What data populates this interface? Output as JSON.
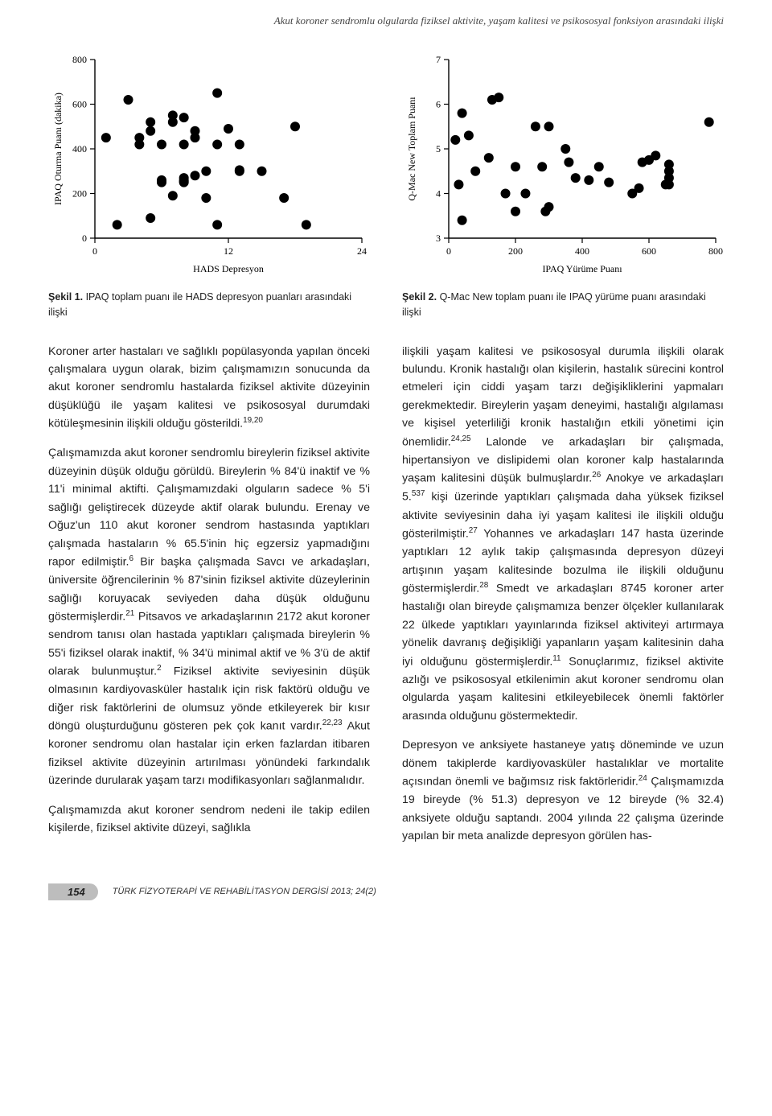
{
  "running_head": "Akut koroner sendromlu olgularda fiziksel aktivite, yaşam kalitesi ve psikososyal fonksiyon arasındaki ilişki",
  "fig1": {
    "type": "scatter",
    "xlabel": "HADS Depresyon",
    "ylabel": "IPAQ Oturma Puanı (dakika)",
    "xlim": [
      0,
      24
    ],
    "xticks": [
      0,
      12,
      24
    ],
    "ylim": [
      0,
      800
    ],
    "yticks": [
      0,
      200,
      400,
      600,
      800
    ],
    "marker": "circle",
    "marker_size": 6,
    "marker_color": "#000000",
    "background_color": "#ffffff",
    "axis_color": "#000000",
    "font_family": "Verdana",
    "tick_fontsize": 12,
    "label_fontsize": 12,
    "points": [
      [
        1,
        450
      ],
      [
        2,
        60
      ],
      [
        3,
        620
      ],
      [
        4,
        450
      ],
      [
        4,
        420
      ],
      [
        5,
        90
      ],
      [
        5,
        520
      ],
      [
        5,
        480
      ],
      [
        6,
        420
      ],
      [
        6,
        250
      ],
      [
        6,
        255
      ],
      [
        6,
        260
      ],
      [
        7,
        550
      ],
      [
        7,
        520
      ],
      [
        7,
        190
      ],
      [
        8,
        540
      ],
      [
        8,
        250
      ],
      [
        8,
        255
      ],
      [
        8,
        260
      ],
      [
        8,
        270
      ],
      [
        8,
        420
      ],
      [
        9,
        450
      ],
      [
        9,
        280
      ],
      [
        9,
        480
      ],
      [
        10,
        300
      ],
      [
        10,
        180
      ],
      [
        11,
        650
      ],
      [
        11,
        420
      ],
      [
        11,
        60
      ],
      [
        12,
        490
      ],
      [
        13,
        300
      ],
      [
        13,
        305
      ],
      [
        13,
        420
      ],
      [
        15,
        300
      ],
      [
        17,
        180
      ],
      [
        18,
        500
      ],
      [
        19,
        60
      ]
    ],
    "caption_bold": "Şekil 1.",
    "caption_rest": " IPAQ toplam puanı ile HADS depresyon puanları arasındaki ilişki"
  },
  "fig2": {
    "type": "scatter",
    "xlabel": "IPAQ Yürüme Puanı",
    "ylabel": "Q-Mac New Toplam Puanı",
    "xlim": [
      0,
      800
    ],
    "xticks": [
      0,
      200,
      400,
      600,
      800
    ],
    "ylim": [
      3,
      7
    ],
    "yticks": [
      3,
      4,
      5,
      6,
      7
    ],
    "marker": "circle",
    "marker_size": 6,
    "marker_color": "#000000",
    "background_color": "#ffffff",
    "axis_color": "#000000",
    "font_family": "Verdana",
    "tick_fontsize": 12,
    "label_fontsize": 12,
    "points": [
      [
        20,
        5.2
      ],
      [
        30,
        4.2
      ],
      [
        40,
        5.8
      ],
      [
        40,
        3.4
      ],
      [
        60,
        5.3
      ],
      [
        80,
        4.5
      ],
      [
        120,
        4.8
      ],
      [
        130,
        6.1
      ],
      [
        150,
        6.15
      ],
      [
        170,
        4.0
      ],
      [
        200,
        4.6
      ],
      [
        200,
        3.6
      ],
      [
        230,
        4.0
      ],
      [
        260,
        5.5
      ],
      [
        280,
        4.6
      ],
      [
        290,
        3.6
      ],
      [
        300,
        3.7
      ],
      [
        300,
        5.5
      ],
      [
        350,
        5.0
      ],
      [
        360,
        4.7
      ],
      [
        380,
        4.35
      ],
      [
        420,
        4.3
      ],
      [
        450,
        4.6
      ],
      [
        480,
        4.25
      ],
      [
        550,
        4.0
      ],
      [
        570,
        4.12
      ],
      [
        580,
        4.7
      ],
      [
        600,
        4.75
      ],
      [
        620,
        4.85
      ],
      [
        650,
        4.2
      ],
      [
        660,
        4.65
      ],
      [
        660,
        4.5
      ],
      [
        660,
        4.35
      ],
      [
        660,
        4.2
      ],
      [
        780,
        5.6
      ]
    ],
    "caption_bold": "Şekil 2.",
    "caption_rest": " Q-Mac New toplam puanı ile IPAQ yürüme puanı arasındaki ilişki"
  },
  "body": {
    "p1": "Koroner arter hastaları ve sağlıklı popülasyonda yapılan önceki çalışmalara uygun olarak, bizim çalışmamızın sonucunda da akut koroner sendromlu hastalarda fiziksel aktivite düzeyinin düşüklüğü ile yaşam kalitesi ve psikososyal durumdaki kötüleşmesinin ilişkili olduğu gösterildi.19,20",
    "p2": "Çalışmamızda akut koroner sendromlu bireylerin fiziksel aktivite düzeyinin düşük olduğu görüldü. Bireylerin % 84'ü inaktif ve % 11'i minimal aktifti. Çalışmamızdaki olguların sadece % 5'i sağlığı geliştirecek düzeyde aktif olarak bulundu. Erenay ve Oğuz'un 110 akut koroner sendrom hastasında yaptıkları çalışmada hastaların % 65.5'inin hiç egzersiz yapmadığını rapor edilmiştir.6 Bir başka çalışmada Savcı ve arkadaşları, üniversite öğrencilerinin % 87'sinin fiziksel aktivite düzeylerinin sağlığı koruyacak seviyeden daha düşük olduğunu göstermişlerdir.21 Pitsavos ve arkadaşlarının 2172 akut koroner sendrom tanısı olan hastada yaptıkları çalışmada bireylerin % 55'i fiziksel olarak inaktif, % 34'ü minimal aktif ve % 3'ü de aktif olarak bulunmuştur.2 Fiziksel aktivite seviyesinin düşük olmasının kardiyovasküler hastalık için risk faktörü olduğu ve diğer risk faktörlerini de olumsuz yönde etkileyerek bir kısır döngü oluşturduğunu gösteren pek çok kanıt vardır.22,23 Akut koroner sendromu olan hastalar için erken fazlardan itibaren fiziksel aktivite düzeyinin artırılması yönündeki farkındalık üzerinde durularak yaşam tarzı modifikasyonları sağlanmalıdır.",
    "p3": "Çalışmamızda akut koroner sendrom nedeni ile takip edilen kişilerde, fiziksel aktivite düzeyi, sağlıkla",
    "p4": "ilişkili yaşam kalitesi ve psikososyal durumla ilişkili olarak bulundu. Kronik hastalığı olan kişilerin, hastalık sürecini kontrol etmeleri için ciddi yaşam tarzı değişikliklerini yapmaları gerekmektedir. Bireylerin yaşam deneyimi, hastalığı algılaması ve kişisel yeterliliği kronik hastalığın etkili yönetimi için önemlidir.24,25 Lalonde ve arkadaşları bir çalışmada, hipertansiyon ve dislipidemi olan koroner kalp hastalarında yaşam kalitesini düşük bulmuşlardır.26 Anokye ve arkadaşları 5.537 kişi üzerinde yaptıkları çalışmada daha yüksek fiziksel aktivite seviyesinin daha iyi yaşam kalitesi ile ilişkili olduğu gösterilmiştir.27 Yohannes ve arkadaşları 147 hasta üzerinde yaptıkları 12 aylık takip çalışmasında depresyon düzeyi artışının yaşam kalitesinde bozulma ile ilişkili olduğunu göstermişlerdir.28 Smedt ve arkadaşları 8745 koroner arter hastalığı olan bireyde çalışmamıza benzer ölçekler kullanılarak 22 ülkede yaptıkları yayınlarında fiziksel aktiviteyi artırmaya yönelik davranış değişikliği yapanların yaşam kalitesinin daha iyi olduğunu göstermişlerdir.11 Sonuçlarımız, fiziksel aktivite azlığı ve psikososyal etkilenimin akut koroner sendromu olan olgularda yaşam kalitesini etkileyebilecek önemli faktörler arasında olduğunu göstermektedir.",
    "p5": "Depresyon ve anksiyete hastaneye yatış döneminde ve uzun dönem takiplerde kardiyovasküler hastalıklar ve mortalite açısından önemli ve bağımsız risk faktörleridir.24 Çalışmamızda 19 bireyde (% 51.3) depresyon ve 12 bireyde (% 32.4) anksiyete olduğu saptandı. 2004 yılında 22 çalışma üzerinde yapılan bir meta analizde depresyon görülen has-"
  },
  "footer": {
    "page": "154",
    "journal": "TÜRK FİZYOTERAPİ VE REHABİLİTASYON DERGİSİ 2013; 24(2)"
  }
}
